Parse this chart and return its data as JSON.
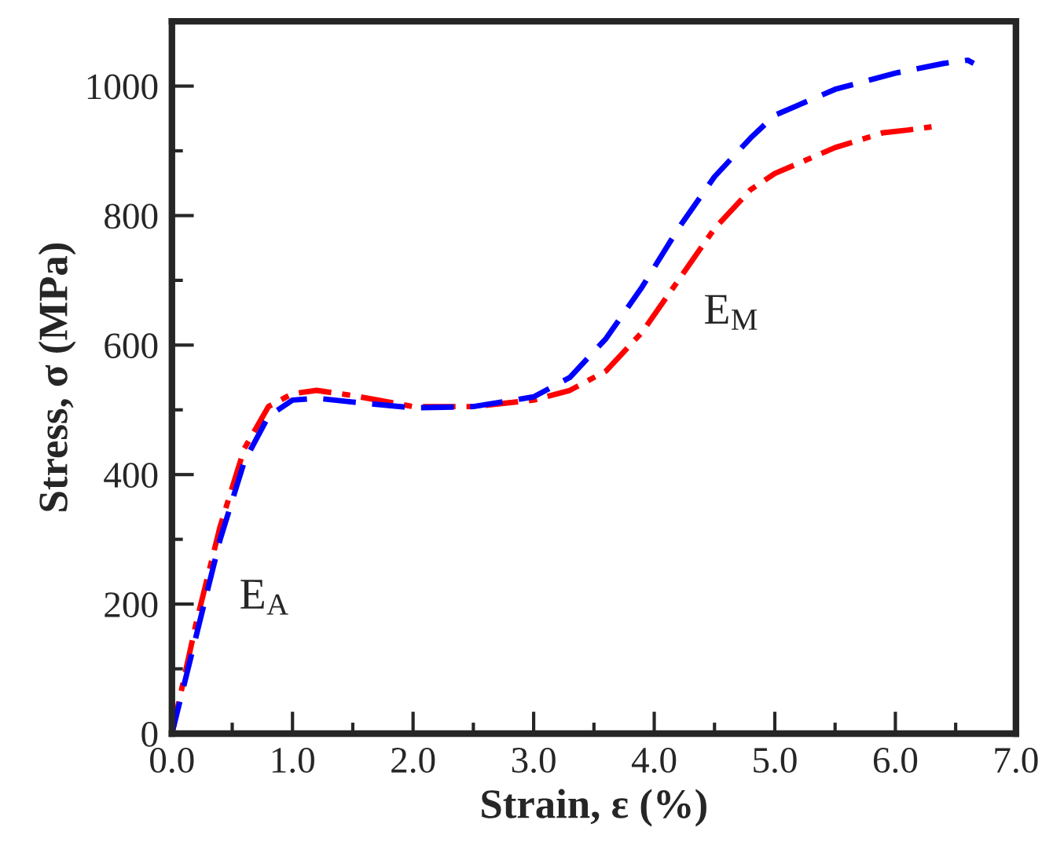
{
  "chart_data": {
    "type": "line",
    "xlabel": "Strain, ε (%)",
    "ylabel": "Stress, σ (MPa)",
    "xlim": [
      0,
      7
    ],
    "ylim": [
      0,
      1100
    ],
    "xticks": [
      {
        "value": 0,
        "label": "0.0"
      },
      {
        "value": 0.5,
        "label": null
      },
      {
        "value": 1,
        "label": "1.0"
      },
      {
        "value": 1.5,
        "label": null
      },
      {
        "value": 2,
        "label": "2.0"
      },
      {
        "value": 2.5,
        "label": null
      },
      {
        "value": 3,
        "label": "3.0"
      },
      {
        "value": 3.5,
        "label": null
      },
      {
        "value": 4,
        "label": "4.0"
      },
      {
        "value": 4.5,
        "label": null
      },
      {
        "value": 5,
        "label": "5.0"
      },
      {
        "value": 5.5,
        "label": null
      },
      {
        "value": 6,
        "label": "6.0"
      },
      {
        "value": 6.5,
        "label": null
      },
      {
        "value": 7,
        "label": "7.0"
      }
    ],
    "yticks": [
      0,
      {
        "value": 100,
        "label": null
      },
      200,
      {
        "value": 300,
        "label": null
      },
      400,
      {
        "value": 500,
        "label": null
      },
      600,
      {
        "value": 700,
        "label": null
      },
      800,
      {
        "value": 900,
        "label": null
      },
      1000
    ],
    "grid": false,
    "legend": false,
    "series": [
      {
        "color": "#ff0000",
        "line_style": "dashdot",
        "x": [
          0,
          0.2,
          0.4,
          0.6,
          0.8,
          1.0,
          1.2,
          1.5,
          2.0,
          2.5,
          3.0,
          3.3,
          3.6,
          3.9,
          4.2,
          4.5,
          4.8,
          5.0,
          5.5,
          5.9,
          6.1,
          6.3
        ],
        "values": [
          0,
          170,
          320,
          440,
          505,
          525,
          530,
          522,
          505,
          505,
          515,
          530,
          560,
          620,
          700,
          780,
          840,
          865,
          905,
          928,
          932,
          937
        ]
      },
      {
        "color": "#0000ff",
        "line_style": "dashed",
        "x": [
          0,
          0.2,
          0.4,
          0.6,
          0.8,
          1.0,
          1.2,
          1.5,
          2.0,
          2.5,
          3.0,
          3.3,
          3.6,
          3.9,
          4.2,
          4.5,
          4.8,
          5.0,
          5.5,
          6.0,
          6.4,
          6.6,
          6.65
        ],
        "values": [
          0,
          150,
          300,
          420,
          490,
          515,
          518,
          512,
          503,
          505,
          520,
          550,
          610,
          690,
          780,
          860,
          920,
          955,
          995,
          1020,
          1035,
          1040,
          1035
        ]
      }
    ],
    "annotations": [
      "E$_{A}$",
      "E$_{M}$"
    ]
  }
}
